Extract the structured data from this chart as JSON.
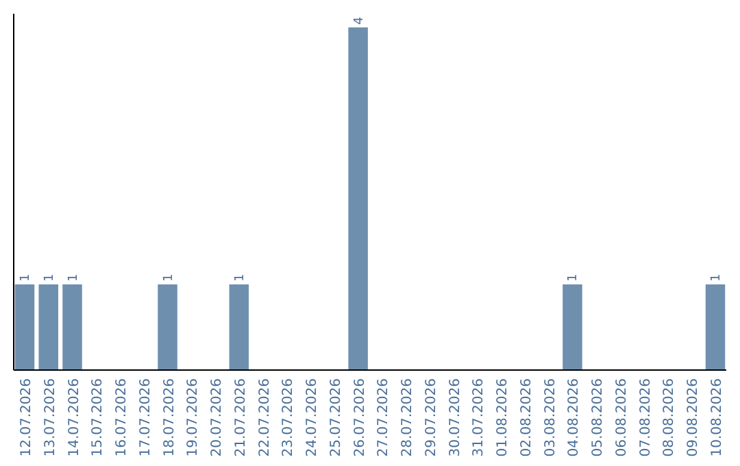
{
  "chart_data": {
    "type": "bar",
    "categories": [
      "12.07.2026",
      "13.07.2026",
      "14.07.2026",
      "15.07.2026",
      "16.07.2026",
      "17.07.2026",
      "18.07.2026",
      "19.07.2026",
      "20.07.2026",
      "21.07.2026",
      "22.07.2026",
      "23.07.2026",
      "24.07.2026",
      "25.07.2026",
      "26.07.2026",
      "27.07.2026",
      "28.07.2026",
      "29.07.2026",
      "30.07.2026",
      "31.07.2026",
      "01.08.2026",
      "02.08.2026",
      "03.08.2026",
      "04.08.2026",
      "05.08.2026",
      "06.08.2026",
      "07.08.2026",
      "08.08.2026",
      "09.08.2026",
      "10.08.2026"
    ],
    "values": [
      1,
      1,
      1,
      0,
      0,
      0,
      1,
      0,
      0,
      1,
      0,
      0,
      0,
      0,
      4,
      0,
      0,
      0,
      0,
      0,
      0,
      0,
      0,
      1,
      0,
      0,
      0,
      0,
      0,
      1
    ],
    "value_labels": [
      "1",
      "1",
      "1",
      null,
      null,
      null,
      "1",
      null,
      null,
      "1",
      null,
      null,
      null,
      null,
      "4",
      null,
      null,
      null,
      null,
      null,
      null,
      null,
      null,
      "1",
      null,
      null,
      null,
      null,
      null,
      "1"
    ],
    "color": "#6f8faf"
  }
}
